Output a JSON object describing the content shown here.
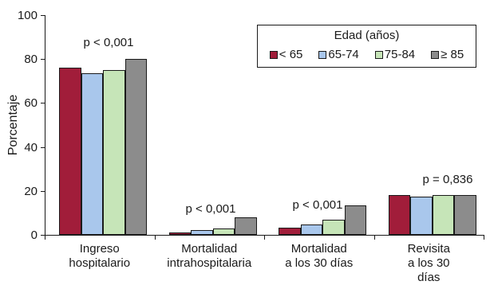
{
  "chart_data": {
    "type": "bar",
    "categories": [
      "Ingreso\nhospitalario",
      "Mortalidad\nintrahospitalaria",
      "Mortalidad\na los 30 días",
      "Revisita\na los 30 días"
    ],
    "series": [
      {
        "name": "< 65",
        "color": "#A11D3A",
        "values": [
          76,
          1,
          3.2,
          18
        ]
      },
      {
        "name": "65-74",
        "color": "#A9C7EC",
        "values": [
          73.5,
          2.2,
          4.6,
          17.3
        ]
      },
      {
        "name": "75-84",
        "color": "#C6E5B8",
        "values": [
          75,
          2.8,
          7,
          18
        ]
      },
      {
        "name": "≥ 85",
        "color": "#8C8C8C",
        "values": [
          80,
          8,
          13.5,
          18
        ]
      }
    ],
    "legend_title": "Edad (años)",
    "ylabel": "Porcentaje",
    "ylim": [
      0,
      100
    ],
    "yticks": [
      0,
      20,
      40,
      60,
      80,
      100
    ],
    "annotations": [
      "p < 0,001",
      "p < 0,001",
      "p < 0,001",
      "p = 0,836"
    ],
    "grid": false,
    "legend_position": "top-right"
  }
}
